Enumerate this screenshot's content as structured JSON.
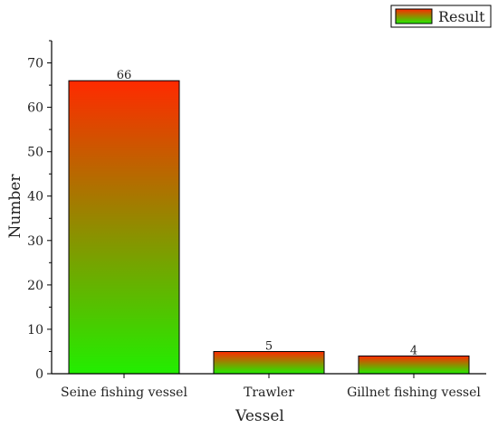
{
  "chart_data": {
    "type": "bar",
    "categories": [
      "Seine fishing vessel",
      "Trawler",
      "Gillnet fishing vessel"
    ],
    "series": [
      {
        "name": "Result",
        "values": [
          66,
          5,
          4
        ]
      }
    ],
    "data_labels": [
      "66",
      "5",
      "4"
    ],
    "xlabel": "Vessel",
    "ylabel": "Number",
    "ylim": [
      0,
      75
    ],
    "yticks": [
      0,
      10,
      20,
      30,
      40,
      50,
      60,
      70
    ],
    "grid": false,
    "legend_position": "top-right",
    "colors": {
      "bar_top": "#ff2a00",
      "bar_bottom": "#22ee00",
      "axis": "#000000"
    }
  }
}
